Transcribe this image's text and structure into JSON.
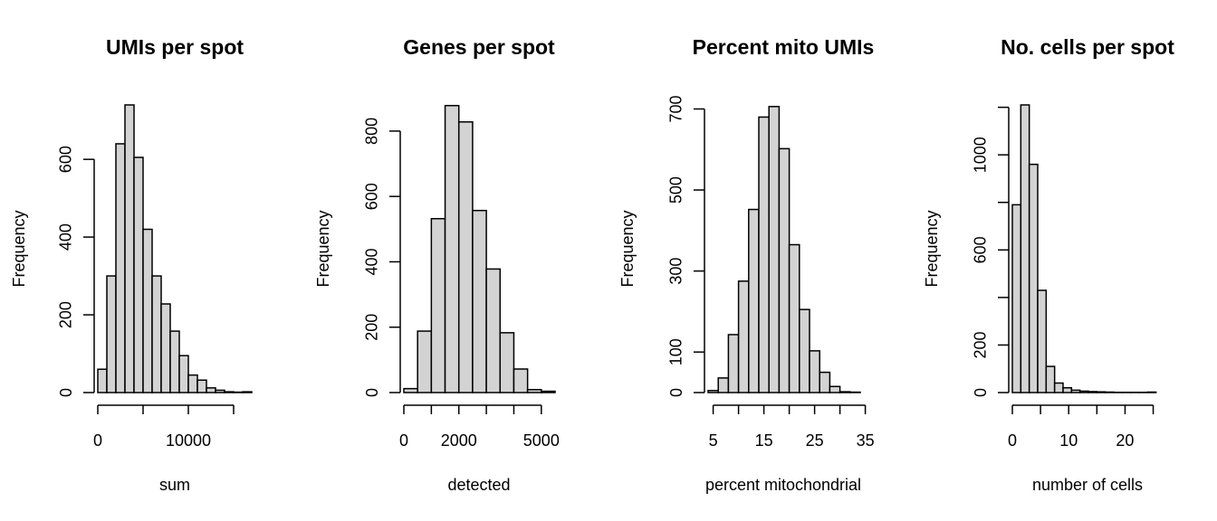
{
  "chart_data": [
    {
      "type": "bar",
      "subtype": "histogram",
      "title": "UMIs per spot",
      "xlabel": "sum",
      "ylabel": "Frequency",
      "xlim": [
        0,
        17000
      ],
      "ylim": [
        0,
        740
      ],
      "x_ticks": [
        0,
        5000,
        10000,
        15000
      ],
      "x_tick_labels": [
        "0",
        "",
        "10000",
        ""
      ],
      "y_ticks": [
        0,
        200,
        400,
        600
      ],
      "y_tick_labels": [
        "0",
        "200",
        "400",
        "600"
      ],
      "bins": [
        {
          "x0": 0,
          "x1": 1000,
          "count": 60
        },
        {
          "x0": 1000,
          "x1": 2000,
          "count": 300
        },
        {
          "x0": 2000,
          "x1": 3000,
          "count": 640
        },
        {
          "x0": 3000,
          "x1": 4000,
          "count": 740
        },
        {
          "x0": 4000,
          "x1": 5000,
          "count": 605
        },
        {
          "x0": 5000,
          "x1": 6000,
          "count": 420
        },
        {
          "x0": 6000,
          "x1": 7000,
          "count": 300
        },
        {
          "x0": 7000,
          "x1": 8000,
          "count": 228
        },
        {
          "x0": 8000,
          "x1": 9000,
          "count": 158
        },
        {
          "x0": 9000,
          "x1": 10000,
          "count": 95
        },
        {
          "x0": 10000,
          "x1": 11000,
          "count": 45
        },
        {
          "x0": 11000,
          "x1": 12000,
          "count": 32
        },
        {
          "x0": 12000,
          "x1": 13000,
          "count": 12
        },
        {
          "x0": 13000,
          "x1": 14000,
          "count": 6
        },
        {
          "x0": 14000,
          "x1": 15000,
          "count": 2
        },
        {
          "x0": 15000,
          "x1": 16000,
          "count": 1
        },
        {
          "x0": 16000,
          "x1": 17000,
          "count": 2
        }
      ]
    },
    {
      "type": "bar",
      "subtype": "histogram",
      "title": "Genes per spot",
      "xlabel": "detected",
      "ylabel": "Frequency",
      "xlim": [
        0,
        5500
      ],
      "ylim": [
        0,
        880
      ],
      "x_ticks": [
        0,
        1000,
        2000,
        3000,
        4000,
        5000
      ],
      "x_tick_labels": [
        "0",
        "",
        "2000",
        "",
        "",
        "5000"
      ],
      "y_ticks": [
        0,
        200,
        400,
        600,
        800
      ],
      "y_tick_labels": [
        "0",
        "200",
        "400",
        "600",
        "800"
      ],
      "bins": [
        {
          "x0": 0,
          "x1": 500,
          "count": 12
        },
        {
          "x0": 500,
          "x1": 1000,
          "count": 188
        },
        {
          "x0": 1000,
          "x1": 1500,
          "count": 532
        },
        {
          "x0": 1500,
          "x1": 2000,
          "count": 878
        },
        {
          "x0": 2000,
          "x1": 2500,
          "count": 828
        },
        {
          "x0": 2500,
          "x1": 3000,
          "count": 557
        },
        {
          "x0": 3000,
          "x1": 3500,
          "count": 378
        },
        {
          "x0": 3500,
          "x1": 4000,
          "count": 183
        },
        {
          "x0": 4000,
          "x1": 4500,
          "count": 72
        },
        {
          "x0": 4500,
          "x1": 5000,
          "count": 9
        },
        {
          "x0": 5000,
          "x1": 5500,
          "count": 4
        }
      ]
    },
    {
      "type": "bar",
      "subtype": "histogram",
      "title": "Percent mito UMIs",
      "xlabel": "percent mitochondrial",
      "ylabel": "Frequency",
      "xlim": [
        4,
        34
      ],
      "ylim": [
        0,
        710
      ],
      "x_ticks": [
        5,
        10,
        15,
        20,
        25,
        30,
        35
      ],
      "x_tick_labels": [
        "5",
        "",
        "15",
        "",
        "25",
        "",
        "35"
      ],
      "y_ticks": [
        0,
        100,
        300,
        500,
        700
      ],
      "y_tick_labels": [
        "0",
        "100",
        "300",
        "500",
        "700"
      ],
      "bins": [
        {
          "x0": 4,
          "x1": 6,
          "count": 5
        },
        {
          "x0": 6,
          "x1": 8,
          "count": 36
        },
        {
          "x0": 8,
          "x1": 10,
          "count": 143
        },
        {
          "x0": 10,
          "x1": 12,
          "count": 275
        },
        {
          "x0": 12,
          "x1": 14,
          "count": 452
        },
        {
          "x0": 14,
          "x1": 16,
          "count": 680
        },
        {
          "x0": 16,
          "x1": 18,
          "count": 706
        },
        {
          "x0": 18,
          "x1": 20,
          "count": 602
        },
        {
          "x0": 20,
          "x1": 22,
          "count": 365
        },
        {
          "x0": 22,
          "x1": 24,
          "count": 205
        },
        {
          "x0": 24,
          "x1": 26,
          "count": 103
        },
        {
          "x0": 26,
          "x1": 28,
          "count": 50
        },
        {
          "x0": 28,
          "x1": 30,
          "count": 15
        },
        {
          "x0": 30,
          "x1": 32,
          "count": 2
        },
        {
          "x0": 32,
          "x1": 34,
          "count": 1
        }
      ]
    },
    {
      "type": "bar",
      "subtype": "histogram",
      "title": "No. cells per spot",
      "xlabel": "number of cells",
      "ylabel": "Frequency",
      "xlim": [
        0,
        27
      ],
      "ylim": [
        0,
        1210
      ],
      "x_ticks": [
        0,
        5,
        10,
        15,
        20,
        25
      ],
      "x_tick_labels": [
        "0",
        "",
        "10",
        "",
        "20",
        ""
      ],
      "y_ticks": [
        0,
        200,
        400,
        600,
        800,
        1000,
        1200
      ],
      "y_tick_labels": [
        "0",
        "200",
        "",
        "600",
        "",
        "1000",
        ""
      ],
      "bins": [
        {
          "x0": 0,
          "x1": 1.5,
          "count": 790
        },
        {
          "x0": 1.5,
          "x1": 3,
          "count": 1210
        },
        {
          "x0": 3,
          "x1": 4.5,
          "count": 960
        },
        {
          "x0": 4.5,
          "x1": 6,
          "count": 430
        },
        {
          "x0": 6,
          "x1": 7.5,
          "count": 110
        },
        {
          "x0": 7.5,
          "x1": 9,
          "count": 40
        },
        {
          "x0": 9,
          "x1": 10.5,
          "count": 20
        },
        {
          "x0": 10.5,
          "x1": 12,
          "count": 10
        },
        {
          "x0": 12,
          "x1": 13.5,
          "count": 6
        },
        {
          "x0": 13.5,
          "x1": 15,
          "count": 4
        },
        {
          "x0": 15,
          "x1": 16.5,
          "count": 3
        },
        {
          "x0": 16.5,
          "x1": 18,
          "count": 2
        },
        {
          "x0": 18,
          "x1": 19.5,
          "count": 1
        },
        {
          "x0": 19.5,
          "x1": 21,
          "count": 1
        },
        {
          "x0": 21,
          "x1": 22.5,
          "count": 1
        },
        {
          "x0": 22.5,
          "x1": 24,
          "count": 1
        },
        {
          "x0": 24,
          "x1": 25.5,
          "count": 2
        },
        {
          "x0": 25.5,
          "x1": 27,
          "count": 0
        }
      ]
    }
  ]
}
